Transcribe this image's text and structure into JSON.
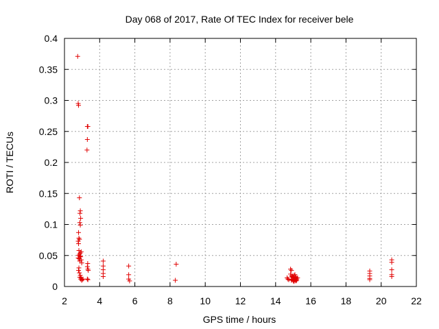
{
  "chart_data": {
    "type": "scatter",
    "title": "Day 068 of 2017, Rate Of TEC Index for receiver bele",
    "xlabel": "GPS time / hours",
    "ylabel": "ROTI / TECUs",
    "xlim": [
      2,
      22
    ],
    "ylim": [
      0,
      0.4
    ],
    "x_ticks": [
      2,
      4,
      6,
      8,
      10,
      12,
      14,
      16,
      18,
      20,
      22
    ],
    "y_ticks": [
      0,
      0.05,
      0.1,
      0.15,
      0.2,
      0.25,
      0.3,
      0.35,
      0.4
    ],
    "x_tick_labels": [
      "2",
      "4",
      "6",
      "8",
      "10",
      "12",
      "14",
      "16",
      "18",
      "20",
      "22"
    ],
    "y_tick_labels": [
      "0",
      "0.05",
      "0.1",
      "0.15",
      "0.2",
      "0.25",
      "0.3",
      "0.35",
      "0.4"
    ],
    "grid": true,
    "marker": "+",
    "marker_color": "#e00000",
    "series": [
      {
        "points": [
          [
            2.75,
            0.371
          ],
          [
            2.78,
            0.295
          ],
          [
            2.8,
            0.292
          ],
          [
            2.85,
            0.143
          ],
          [
            2.9,
            0.122
          ],
          [
            2.88,
            0.118
          ],
          [
            2.92,
            0.11
          ],
          [
            2.87,
            0.103
          ],
          [
            2.9,
            0.099
          ],
          [
            2.8,
            0.087
          ],
          [
            2.82,
            0.078
          ],
          [
            2.85,
            0.076
          ],
          [
            2.78,
            0.073
          ],
          [
            2.8,
            0.069
          ],
          [
            2.82,
            0.058
          ],
          [
            2.95,
            0.056
          ],
          [
            2.9,
            0.054
          ],
          [
            2.85,
            0.052
          ],
          [
            2.8,
            0.05
          ],
          [
            2.88,
            0.049
          ],
          [
            2.92,
            0.048
          ],
          [
            2.78,
            0.046
          ],
          [
            2.83,
            0.045
          ],
          [
            2.95,
            0.043
          ],
          [
            2.87,
            0.041
          ],
          [
            2.98,
            0.038
          ],
          [
            2.82,
            0.03
          ],
          [
            2.8,
            0.026
          ],
          [
            2.85,
            0.022
          ],
          [
            2.9,
            0.018
          ],
          [
            2.87,
            0.015
          ],
          [
            2.95,
            0.014
          ],
          [
            2.92,
            0.012
          ],
          [
            3.0,
            0.011
          ],
          [
            3.05,
            0.012
          ],
          [
            2.98,
            0.01
          ],
          [
            3.3,
            0.258
          ],
          [
            3.33,
            0.258
          ],
          [
            3.3,
            0.237
          ],
          [
            3.28,
            0.22
          ],
          [
            3.32,
            0.037
          ],
          [
            3.3,
            0.032
          ],
          [
            3.33,
            0.028
          ],
          [
            3.35,
            0.026
          ],
          [
            3.3,
            0.012
          ],
          [
            3.33,
            0.011
          ],
          [
            4.2,
            0.041
          ],
          [
            4.2,
            0.033
          ],
          [
            4.2,
            0.027
          ],
          [
            4.2,
            0.021
          ],
          [
            4.2,
            0.016
          ],
          [
            5.65,
            0.033
          ],
          [
            5.65,
            0.019
          ],
          [
            5.65,
            0.012
          ],
          [
            5.7,
            0.009
          ],
          [
            8.35,
            0.036
          ],
          [
            8.3,
            0.01
          ],
          [
            14.65,
            0.014
          ],
          [
            14.7,
            0.012
          ],
          [
            14.75,
            0.011
          ],
          [
            14.85,
            0.028
          ],
          [
            14.9,
            0.026
          ],
          [
            14.85,
            0.02
          ],
          [
            14.9,
            0.017
          ],
          [
            14.95,
            0.015
          ],
          [
            15.0,
            0.014
          ],
          [
            15.05,
            0.018
          ],
          [
            15.1,
            0.016
          ],
          [
            15.15,
            0.015
          ],
          [
            14.95,
            0.012
          ],
          [
            15.0,
            0.011
          ],
          [
            15.05,
            0.012
          ],
          [
            15.1,
            0.011
          ],
          [
            15.15,
            0.013
          ],
          [
            15.2,
            0.012
          ],
          [
            14.9,
            0.01
          ],
          [
            15.0,
            0.009
          ],
          [
            15.1,
            0.01
          ],
          [
            15.2,
            0.01
          ],
          [
            15.05,
            0.008
          ],
          [
            15.15,
            0.009
          ],
          [
            14.95,
            0.016
          ],
          [
            15.1,
            0.019
          ],
          [
            15.25,
            0.014
          ],
          [
            19.35,
            0.025
          ],
          [
            19.35,
            0.021
          ],
          [
            19.35,
            0.017
          ],
          [
            19.35,
            0.013
          ],
          [
            19.35,
            0.011
          ],
          [
            20.6,
            0.043
          ],
          [
            20.6,
            0.039
          ],
          [
            20.6,
            0.027
          ],
          [
            20.6,
            0.019
          ],
          [
            20.6,
            0.016
          ]
        ]
      }
    ]
  }
}
